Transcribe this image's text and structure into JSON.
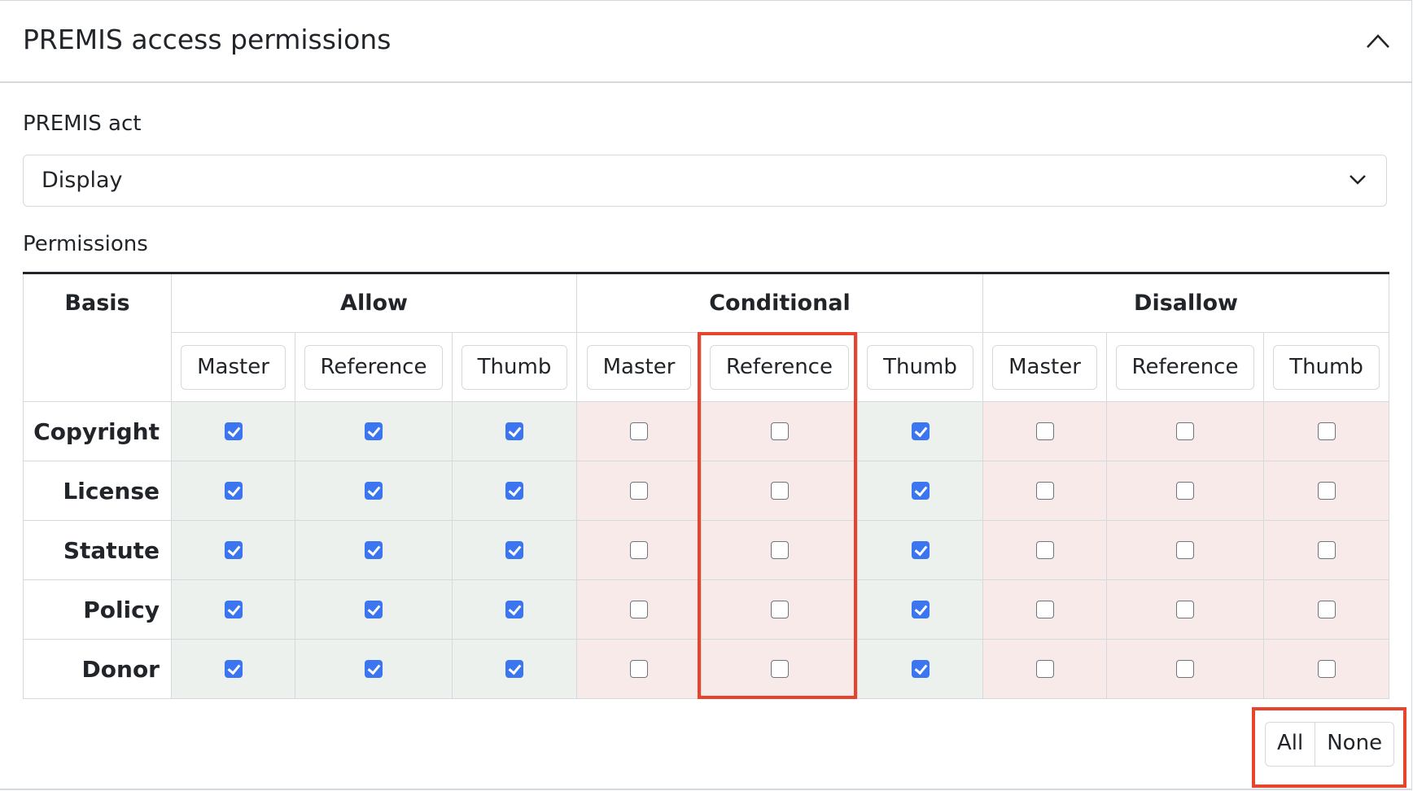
{
  "header": {
    "title": "PREMIS access permissions",
    "collapse_icon": "chevron-up-icon"
  },
  "act": {
    "label": "PREMIS act",
    "selected": "Display"
  },
  "permissions": {
    "label": "Permissions",
    "basis_header": "Basis",
    "groups": [
      "Allow",
      "Conditional",
      "Disallow"
    ],
    "subcolumns": [
      "Master",
      "Reference",
      "Thumb",
      "Master",
      "Reference",
      "Thumb",
      "Master",
      "Reference",
      "Thumb"
    ],
    "rows": [
      {
        "basis": "Copyright",
        "checked": [
          true,
          true,
          true,
          false,
          false,
          true,
          false,
          false,
          false
        ]
      },
      {
        "basis": "License",
        "checked": [
          true,
          true,
          true,
          false,
          false,
          true,
          false,
          false,
          false
        ]
      },
      {
        "basis": "Statute",
        "checked": [
          true,
          true,
          true,
          false,
          false,
          true,
          false,
          false,
          false
        ]
      },
      {
        "basis": "Policy",
        "checked": [
          true,
          true,
          true,
          false,
          false,
          true,
          false,
          false,
          false
        ]
      },
      {
        "basis": "Donor",
        "checked": [
          true,
          true,
          true,
          false,
          false,
          true,
          false,
          false,
          false
        ]
      }
    ]
  },
  "actions": {
    "all": "All",
    "none": "None"
  },
  "colors": {
    "allowed_bg": "#ecf1ee",
    "denied_bg": "#f9eaea",
    "checkbox": "#3b76f0",
    "highlight": "#e8432d"
  }
}
